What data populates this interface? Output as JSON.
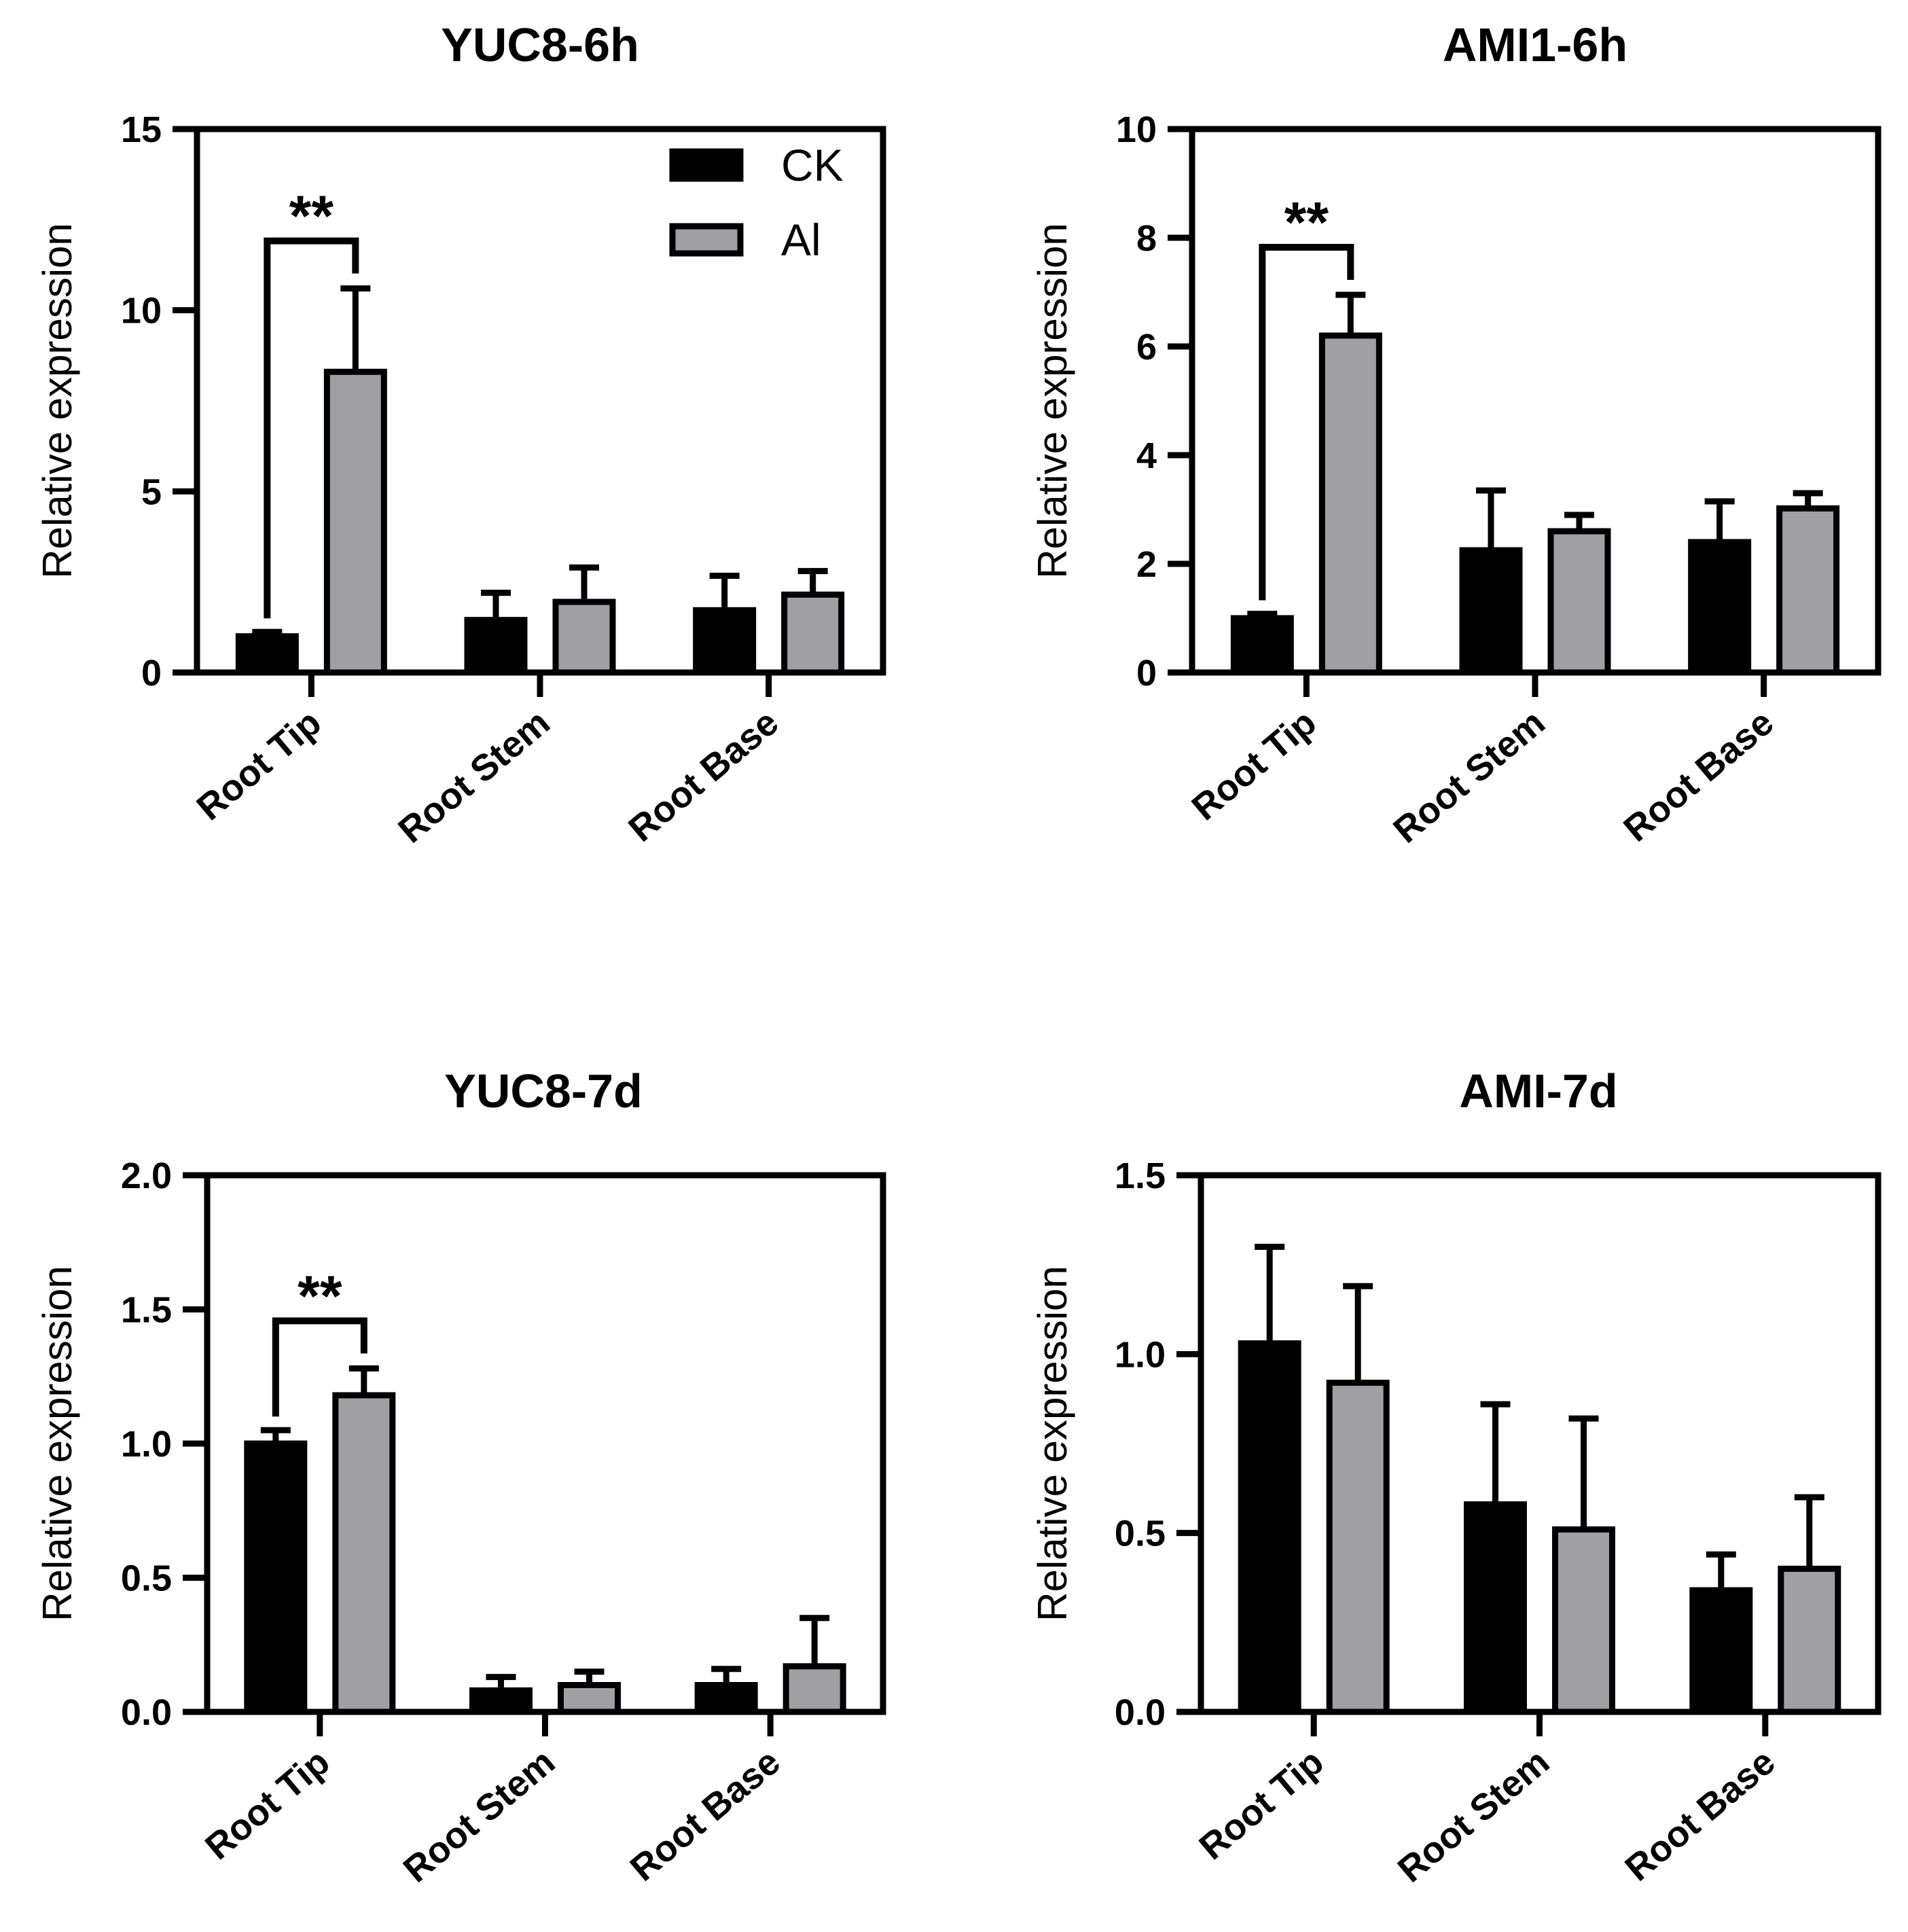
{
  "colors": {
    "CK": "#000000",
    "Al": "#a0a0a4",
    "axis": "#000000"
  },
  "legend": [
    {
      "name": "CK",
      "color": "#000000"
    },
    {
      "name": "Al",
      "color": "#a0a0a4"
    }
  ],
  "chart_data": [
    {
      "type": "bar",
      "title": "YUC8-6h",
      "ylabel": "Relative expression",
      "xlabel": "",
      "categories": [
        "Root Tip",
        "Root Stem",
        "Root Base"
      ],
      "ylim": [
        0,
        15
      ],
      "yticks": [
        0,
        5,
        10,
        15
      ],
      "ytick_labels": [
        "0",
        "5",
        "10",
        "15"
      ],
      "series": [
        {
          "name": "CK",
          "values": [
            1.0,
            1.45,
            1.72
          ],
          "errors": [
            0.12,
            0.75,
            0.95
          ]
        },
        {
          "name": "Al",
          "values": [
            8.3,
            1.95,
            2.15
          ],
          "errors": [
            2.3,
            0.95,
            0.65
          ]
        }
      ],
      "legend_position": "top-right",
      "significance": [
        {
          "category": 0,
          "label": "**"
        }
      ],
      "grid": false
    },
    {
      "type": "bar",
      "title": "AMI1-6h",
      "ylabel": "Relative expression",
      "xlabel": "",
      "categories": [
        "Root Tip",
        "Root Stem",
        "Root Base"
      ],
      "ylim": [
        0,
        10
      ],
      "yticks": [
        0,
        2,
        4,
        6,
        8,
        10
      ],
      "ytick_labels": [
        "0",
        "2",
        "4",
        "6",
        "8",
        "10"
      ],
      "series": [
        {
          "name": "CK",
          "values": [
            1.0,
            2.25,
            2.4
          ],
          "errors": [
            0.08,
            1.1,
            0.75
          ]
        },
        {
          "name": "Al",
          "values": [
            6.2,
            2.6,
            3.02
          ],
          "errors": [
            0.75,
            0.3,
            0.28
          ]
        }
      ],
      "significance": [
        {
          "category": 0,
          "label": "**"
        }
      ],
      "grid": false
    },
    {
      "type": "bar",
      "title": "YUC8-7d",
      "ylabel": "Relative expression",
      "xlabel": "",
      "categories": [
        "Root Tip",
        "Root Stem",
        "Root Base"
      ],
      "ylim": [
        0,
        2.0
      ],
      "yticks": [
        0,
        0.5,
        1.0,
        1.5,
        2.0
      ],
      "ytick_labels": [
        "0.0",
        "0.5",
        "1.0",
        "1.5",
        "2.0"
      ],
      "series": [
        {
          "name": "CK",
          "values": [
            1.0,
            0.08,
            0.1
          ],
          "errors": [
            0.05,
            0.05,
            0.06
          ]
        },
        {
          "name": "Al",
          "values": [
            1.18,
            0.1,
            0.17
          ],
          "errors": [
            0.1,
            0.05,
            0.18
          ]
        }
      ],
      "significance": [
        {
          "category": 0,
          "label": "**"
        }
      ],
      "grid": false
    },
    {
      "type": "bar",
      "title": "AMI-7d",
      "ylabel": "Relative expression",
      "xlabel": "",
      "categories": [
        "Root Tip",
        "Root Stem",
        "Root Base"
      ],
      "ylim": [
        0,
        1.5
      ],
      "yticks": [
        0,
        0.5,
        1.0,
        1.5
      ],
      "ytick_labels": [
        "0.0",
        "0.5",
        "1.0",
        "1.5"
      ],
      "series": [
        {
          "name": "CK",
          "values": [
            1.03,
            0.58,
            0.34
          ],
          "errors": [
            0.27,
            0.28,
            0.1
          ]
        },
        {
          "name": "Al",
          "values": [
            0.92,
            0.51,
            0.4
          ],
          "errors": [
            0.27,
            0.31,
            0.2
          ]
        }
      ],
      "significance": [],
      "grid": false
    }
  ]
}
